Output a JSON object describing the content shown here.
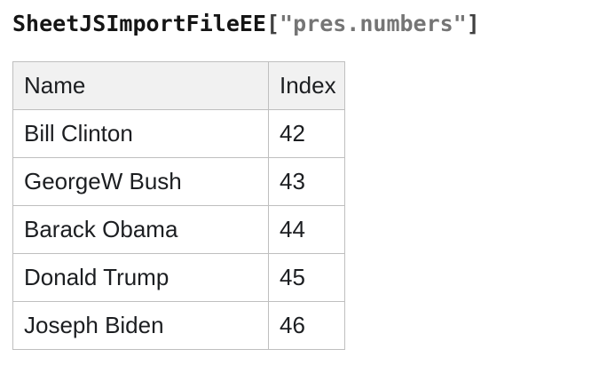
{
  "heading": {
    "object_name": "SheetJSImportFileEE",
    "open_bracket": "[",
    "sheet_name": "\"pres.numbers\"",
    "close_bracket": "]",
    "text_color": "#151515",
    "bracket_color": "#404040",
    "string_color": "#757575"
  },
  "table": {
    "border_color": "#bfbfbf",
    "header_bg": "#f1f1f1",
    "columns": [
      {
        "label": "Name"
      },
      {
        "label": "Index"
      }
    ],
    "rows": [
      {
        "name": "Bill Clinton",
        "index": "42"
      },
      {
        "name": "GeorgeW Bush",
        "index": "43"
      },
      {
        "name": "Barack Obama",
        "index": "44"
      },
      {
        "name": "Donald Trump",
        "index": "45"
      },
      {
        "name": "Joseph Biden",
        "index": "46"
      }
    ]
  }
}
